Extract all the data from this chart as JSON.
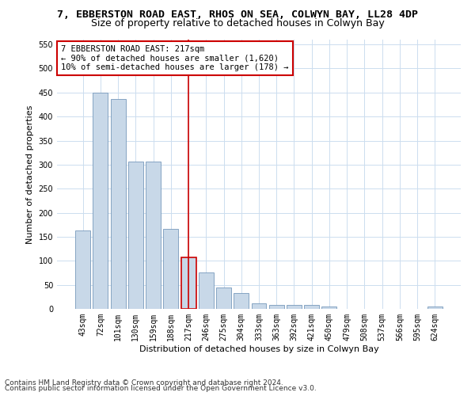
{
  "title": "7, EBBERSTON ROAD EAST, RHOS ON SEA, COLWYN BAY, LL28 4DP",
  "subtitle": "Size of property relative to detached houses in Colwyn Bay",
  "xlabel": "Distribution of detached houses by size in Colwyn Bay",
  "ylabel": "Number of detached properties",
  "footnote1": "Contains HM Land Registry data © Crown copyright and database right 2024.",
  "footnote2": "Contains public sector information licensed under the Open Government Licence v3.0.",
  "annotation_title": "7 EBBERSTON ROAD EAST: 217sqm",
  "annotation_line1": "← 90% of detached houses are smaller (1,620)",
  "annotation_line2": "10% of semi-detached houses are larger (178) →",
  "marker_value": 217,
  "categories": [
    "43sqm",
    "72sqm",
    "101sqm",
    "130sqm",
    "159sqm",
    "188sqm",
    "217sqm",
    "246sqm",
    "275sqm",
    "304sqm",
    "333sqm",
    "363sqm",
    "392sqm",
    "421sqm",
    "450sqm",
    "479sqm",
    "508sqm",
    "537sqm",
    "566sqm",
    "595sqm",
    "624sqm"
  ],
  "values": [
    163,
    450,
    436,
    307,
    307,
    167,
    107,
    75,
    45,
    33,
    11,
    8,
    8,
    8,
    5,
    0,
    0,
    0,
    0,
    0,
    5
  ],
  "bar_color": "#c8d8e8",
  "bar_edge_color": "#7799bb",
  "marker_bar_edge_color": "#cc0000",
  "marker_line_color": "#cc0000",
  "ylim_max": 560,
  "yticks": [
    0,
    50,
    100,
    150,
    200,
    250,
    300,
    350,
    400,
    450,
    500,
    550
  ],
  "bg_color": "#ffffff",
  "grid_color": "#ccddef",
  "title_fontsize": 9.5,
  "subtitle_fontsize": 9,
  "axis_label_fontsize": 8,
  "tick_fontsize": 7,
  "annotation_fontsize": 7.5,
  "footnote_fontsize": 6.5
}
